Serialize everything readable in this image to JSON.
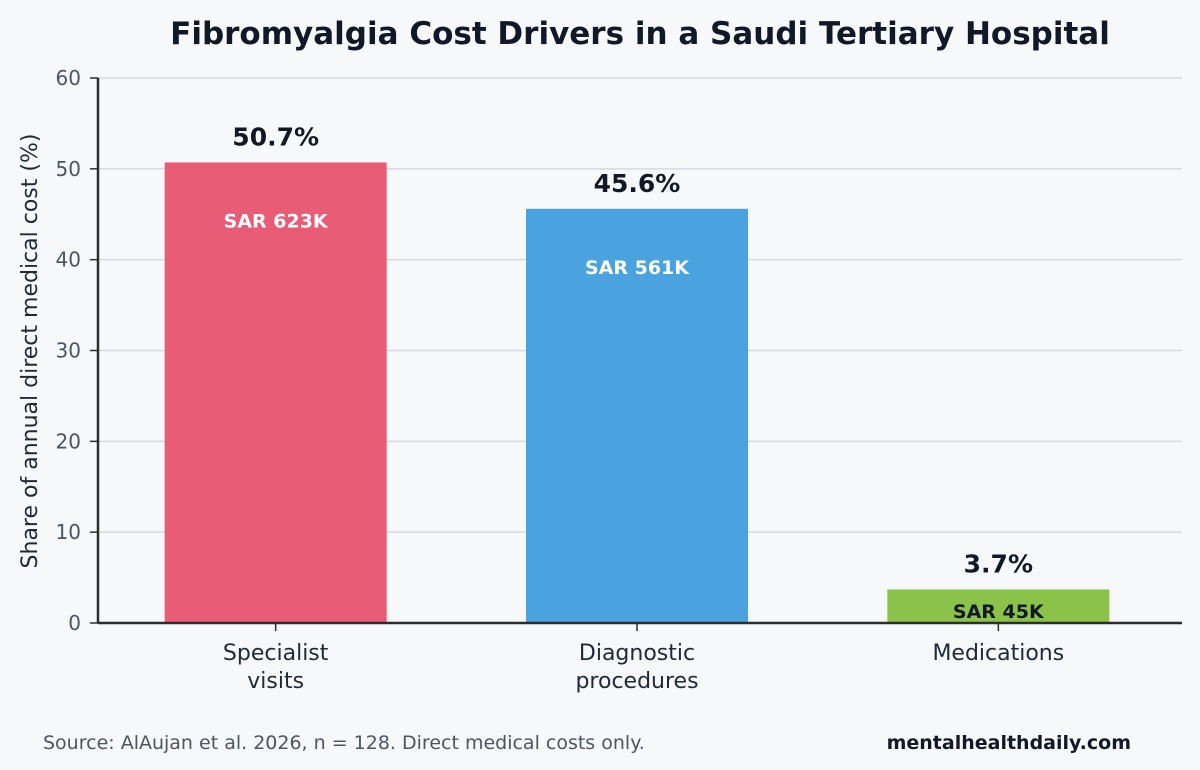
{
  "chart_data": {
    "type": "bar",
    "title": "Fibromyalgia Cost Drivers in a Saudi Tertiary Hospital",
    "xlabel": "",
    "ylabel": "Share of annual direct medical cost (%)",
    "ylim": [
      0,
      60
    ],
    "yticks": [
      "0",
      "10",
      "20",
      "30",
      "40",
      "50",
      "60"
    ],
    "grid": true,
    "categories": [
      [
        "Specialist",
        "visits"
      ],
      [
        "Diagnostic",
        "procedures"
      ],
      [
        "Medications"
      ]
    ],
    "values": [
      50.7,
      45.6,
      3.7
    ],
    "value_labels": [
      "50.7%",
      "45.6%",
      "3.7%"
    ],
    "cost_labels": [
      "SAR 623K",
      "SAR 561K",
      "SAR 45K"
    ],
    "colors": [
      "#e85d75",
      "#4aa3df",
      "#8bc34a"
    ],
    "cost_label_colors": [
      "#ffffff",
      "#ffffff",
      "#111827"
    ]
  },
  "footer": {
    "source": "Source: AlAujan et al. 2026, n = 128. Direct medical costs only.",
    "brand": "mentalhealthdaily.com"
  }
}
